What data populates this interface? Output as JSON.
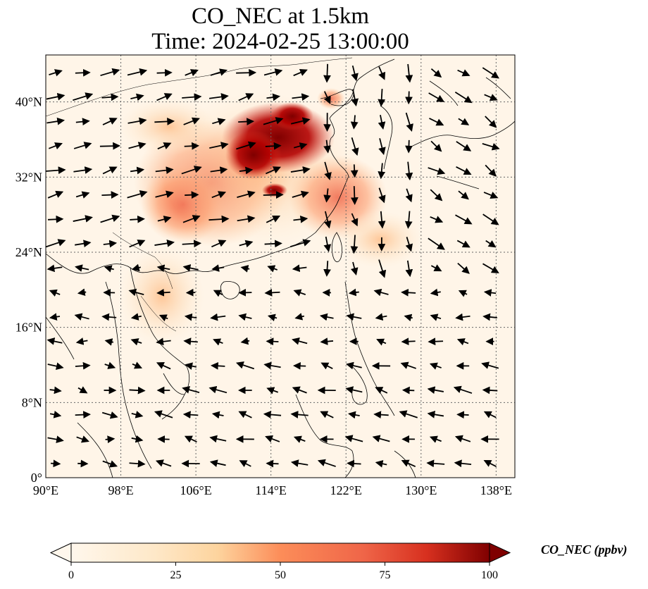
{
  "title": {
    "line1": "CO_NEC at 1.5km",
    "line2": "Time: 2024-02-25 13:00:00"
  },
  "map": {
    "lon_range": [
      90,
      140
    ],
    "lat_range": [
      0,
      45
    ],
    "lon_ticks": [
      "90°E",
      "98°E",
      "106°E",
      "114°E",
      "122°E",
      "130°E",
      "138°E"
    ],
    "lat_ticks": [
      "0°",
      "8°N",
      "16°N",
      "24°N",
      "32°N",
      "40°N"
    ],
    "gridlines": true,
    "field": "CO_NEC",
    "vectors": "wind at 1.5km",
    "hotspots": [
      {
        "region": "North China Plain",
        "level": 100
      },
      {
        "region": "Sichuan Basin",
        "level": 60
      },
      {
        "region": "Yangtze River region",
        "level": 55
      },
      {
        "region": "Taiwan / East China Sea",
        "level": 50
      },
      {
        "region": "Indochina",
        "level": 30
      }
    ]
  },
  "colorbar": {
    "label": "CO_NEC (ppbv)",
    "ticks": [
      "0",
      "25",
      "50",
      "75",
      "100"
    ],
    "range": [
      0,
      100
    ],
    "colors": [
      "#fff7ec",
      "#fdd49e",
      "#fc8d59",
      "#d7301f",
      "#7f0000"
    ],
    "extend": "both"
  }
}
